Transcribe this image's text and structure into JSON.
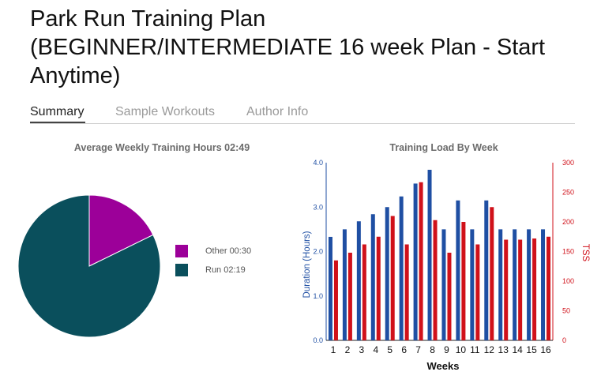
{
  "page": {
    "title_line1": "Park Run Training Plan",
    "title_line2": "(BEGINNER/INTERMEDIATE 16 week Plan - Start",
    "title_line3": "Anytime)"
  },
  "tabs": [
    {
      "label": "Summary",
      "active": true
    },
    {
      "label": "Sample Workouts",
      "active": false
    },
    {
      "label": "Author Info",
      "active": false
    }
  ],
  "colors": {
    "other": "#9c0099",
    "run": "#0a4f5c",
    "duration": "#1f4fa3",
    "tss": "#d0111a"
  },
  "chart_data": [
    {
      "type": "pie",
      "title": "Average Weekly Training Hours 02:49",
      "series": [
        {
          "name": "Other 00:30",
          "value_minutes": 30
        },
        {
          "name": "Run 02:19",
          "value_minutes": 139
        }
      ]
    },
    {
      "type": "bar",
      "title": "Training Load By Week",
      "xlabel": "Weeks",
      "ylabel": "Duration (Hours)",
      "y2label": "TSS",
      "categories": [
        "1",
        "2",
        "3",
        "4",
        "5",
        "6",
        "7",
        "8",
        "9",
        "10",
        "11",
        "12",
        "13",
        "14",
        "15",
        "16"
      ],
      "ylim": [
        0,
        4
      ],
      "y2lim": [
        0,
        300
      ],
      "yticks": [
        "0.0",
        "1.0",
        "2.0",
        "3.0",
        "4.0"
      ],
      "y2ticks": [
        "0",
        "50",
        "100",
        "150",
        "200",
        "250",
        "300"
      ],
      "grid": false,
      "series": [
        {
          "axis": "left",
          "values": [
            2.33,
            2.5,
            2.68,
            2.84,
            3.0,
            3.24,
            3.53,
            3.84,
            2.5,
            3.15,
            2.5,
            3.15,
            2.5,
            2.5,
            2.5,
            2.5
          ]
        },
        {
          "axis": "right",
          "values": [
            135,
            148,
            162,
            175,
            210,
            162,
            267,
            203,
            148,
            200,
            162,
            225,
            170,
            170,
            172,
            175
          ]
        }
      ]
    }
  ]
}
